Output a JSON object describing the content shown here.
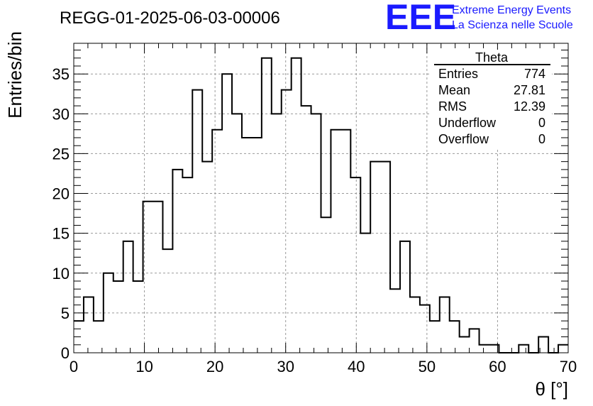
{
  "logo": {
    "mark": "EEE",
    "line1": "Extreme Energy Events",
    "line2": "La Scienza nelle Scuole",
    "color": "#1a1aff"
  },
  "stats_box": {
    "title": "Theta",
    "rows": [
      {
        "label": "Entries",
        "value": "774"
      },
      {
        "label": "Mean",
        "value": "27.81"
      },
      {
        "label": "RMS",
        "value": "12.39"
      },
      {
        "label": "Underflow",
        "value": "0"
      },
      {
        "label": "Overflow",
        "value": "0"
      }
    ]
  },
  "chart_data": {
    "type": "bar",
    "subtype": "step-histogram",
    "title": "REGG-01-2025-06-03-00006",
    "xlabel": "θ [°]",
    "ylabel": "Entries/bin",
    "xlim": [
      0,
      70
    ],
    "ylim": [
      0,
      38.85
    ],
    "grid": true,
    "x_ticks": [
      0,
      10,
      20,
      30,
      40,
      50,
      60,
      70
    ],
    "y_ticks": [
      0,
      5,
      10,
      15,
      20,
      25,
      30,
      35
    ],
    "bin_width": 1.4,
    "bin_edges_start": 0,
    "values": [
      4,
      7,
      4,
      10,
      9,
      14,
      9,
      19,
      19,
      13,
      23,
      22,
      33,
      24,
      28,
      35,
      30,
      27,
      27,
      37,
      30,
      33,
      37,
      31,
      30,
      17,
      28,
      28,
      22,
      15,
      24,
      24,
      8,
      14,
      7,
      6,
      4,
      7,
      4,
      2,
      3,
      1,
      1,
      0,
      0,
      1,
      0,
      2,
      0,
      1
    ],
    "line_color": "#000000"
  }
}
